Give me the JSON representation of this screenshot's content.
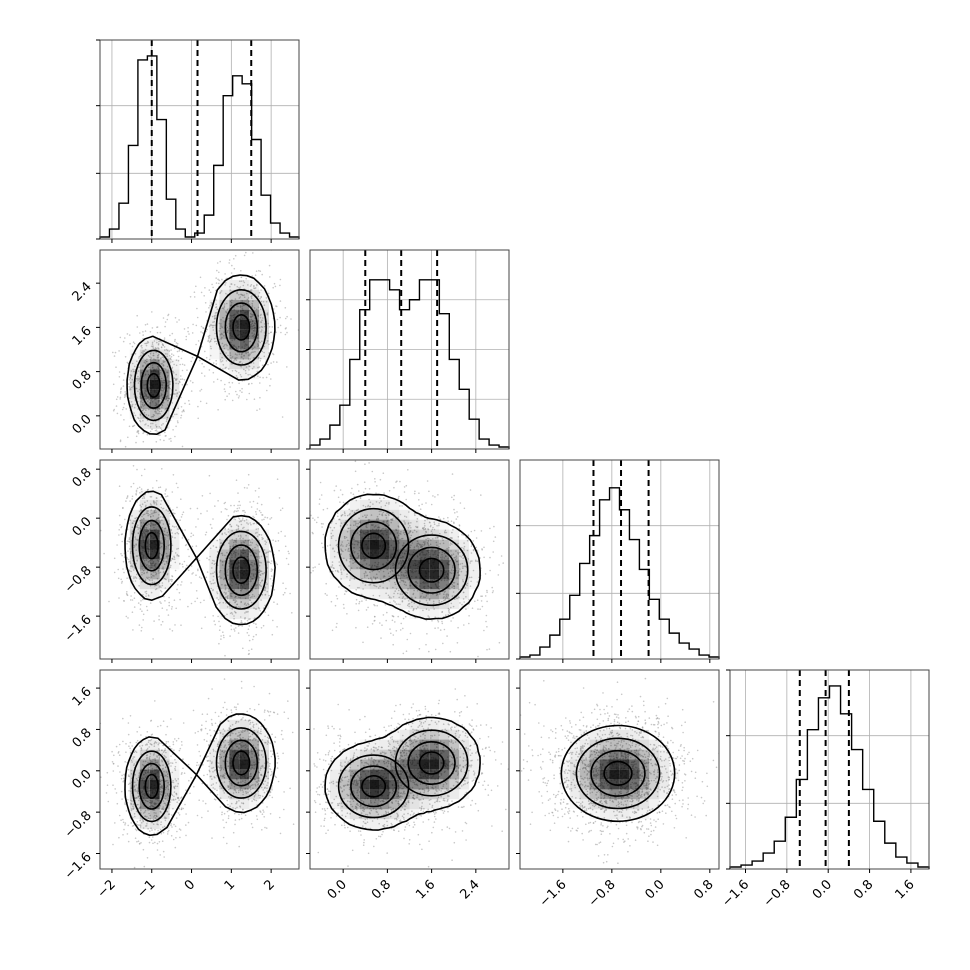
{
  "chart_data": {
    "type": "corner",
    "title": "",
    "num_params": 4,
    "params": [
      {
        "label": "",
        "range": [
          -2.3,
          2.7
        ],
        "ticks": [
          -2,
          -1,
          0,
          1,
          2
        ],
        "tick_labels": [
          "−2",
          "−1",
          "0",
          "1",
          "2"
        ],
        "quantiles": [
          -1.0,
          0.15,
          1.5
        ],
        "histogram": [
          0.01,
          0.05,
          0.18,
          0.47,
          0.9,
          0.92,
          0.6,
          0.2,
          0.05,
          0.01,
          0.03,
          0.12,
          0.37,
          0.72,
          0.82,
          0.78,
          0.5,
          0.22,
          0.08,
          0.03,
          0.01
        ],
        "hist_ticks": [
          0,
          0.33,
          0.67,
          1.0
        ]
      },
      {
        "label": "",
        "range": [
          -0.6,
          3.0
        ],
        "ticks": [
          0.0,
          0.8,
          1.6,
          2.4
        ],
        "tick_labels": [
          "0.0",
          "0.8",
          "1.6",
          "2.4"
        ],
        "quantiles": [
          0.4,
          1.05,
          1.7
        ],
        "histogram": [
          0.02,
          0.05,
          0.12,
          0.22,
          0.45,
          0.7,
          0.85,
          0.85,
          0.8,
          0.7,
          0.75,
          0.85,
          0.85,
          0.68,
          0.45,
          0.3,
          0.15,
          0.05,
          0.02,
          0.01
        ],
        "hist_ticks": [
          0,
          0.25,
          0.5,
          0.75
        ]
      },
      {
        "label": "",
        "range": [
          -2.3,
          0.95
        ],
        "ticks": [
          -1.6,
          -0.8,
          0.0,
          0.8
        ],
        "tick_labels": [
          "−1.6",
          "−0.8",
          "0.0",
          "0.8"
        ],
        "quantiles": [
          -1.1,
          -0.65,
          -0.2
        ],
        "histogram": [
          0.01,
          0.02,
          0.06,
          0.12,
          0.2,
          0.32,
          0.48,
          0.62,
          0.8,
          0.86,
          0.75,
          0.6,
          0.45,
          0.3,
          0.2,
          0.13,
          0.08,
          0.05,
          0.02,
          0.01
        ],
        "hist_ticks": [
          0,
          0.33,
          0.67
        ]
      },
      {
        "label": "",
        "range": [
          -1.9,
          1.95
        ],
        "ticks": [
          -1.6,
          -0.8,
          0.0,
          0.8,
          1.6
        ],
        "tick_labels": [
          "−1.6",
          "−0.8",
          "0.0",
          "0.8",
          "1.6"
        ],
        "quantiles": [
          -0.55,
          -0.05,
          0.4
        ],
        "histogram": [
          0.01,
          0.02,
          0.04,
          0.08,
          0.14,
          0.26,
          0.45,
          0.7,
          0.86,
          0.92,
          0.78,
          0.6,
          0.4,
          0.24,
          0.13,
          0.06,
          0.03,
          0.01
        ],
        "hist_ticks": [
          0,
          0.33,
          0.67,
          1.0
        ]
      }
    ],
    "pairs": [
      {
        "row": 1,
        "col": 0,
        "clusters": [
          {
            "center": [
              -0.95,
              0.55
            ],
            "sd": [
              0.32,
              0.42
            ],
            "rho": 0.0,
            "weight": 0.5
          },
          {
            "center": [
              1.25,
              1.6
            ],
            "sd": [
              0.4,
              0.45
            ],
            "rho": 0.0,
            "weight": 0.5
          }
        ]
      },
      {
        "row": 2,
        "col": 0,
        "clusters": [
          {
            "center": [
              -1.0,
              -0.45
            ],
            "sd": [
              0.32,
              0.42
            ],
            "rho": 0.0,
            "weight": 0.5
          },
          {
            "center": [
              1.25,
              -0.85
            ],
            "sd": [
              0.4,
              0.42
            ],
            "rho": 0.0,
            "weight": 0.5
          }
        ]
      },
      {
        "row": 2,
        "col": 1,
        "clusters": [
          {
            "center": [
              0.55,
              -0.45
            ],
            "sd": [
              0.42,
              0.4
            ],
            "rho": 0.0,
            "weight": 0.5
          },
          {
            "center": [
              1.6,
              -0.85
            ],
            "sd": [
              0.42,
              0.38
            ],
            "rho": 0.0,
            "weight": 0.5
          }
        ]
      },
      {
        "row": 3,
        "col": 0,
        "clusters": [
          {
            "center": [
              -1.0,
              -0.3
            ],
            "sd": [
              0.32,
              0.45
            ],
            "rho": 0.0,
            "weight": 0.5
          },
          {
            "center": [
              1.25,
              0.15
            ],
            "sd": [
              0.4,
              0.45
            ],
            "rho": 0.0,
            "weight": 0.5
          }
        ]
      },
      {
        "row": 3,
        "col": 1,
        "clusters": [
          {
            "center": [
              0.55,
              -0.3
            ],
            "sd": [
              0.42,
              0.4
            ],
            "rho": 0.0,
            "weight": 0.5
          },
          {
            "center": [
              1.6,
              0.15
            ],
            "sd": [
              0.42,
              0.42
            ],
            "rho": 0.0,
            "weight": 0.5
          }
        ]
      },
      {
        "row": 3,
        "col": 2,
        "clusters": [
          {
            "center": [
              -0.7,
              -0.05
            ],
            "sd": [
              0.45,
              0.45
            ],
            "rho": 0.0,
            "weight": 1.0
          }
        ]
      }
    ],
    "contour_levels": [
      0.12,
      0.32,
      0.62,
      0.88
    ],
    "grid": true,
    "colors": {
      "frame": "#444444",
      "grid": "#b0b0b0",
      "contour": "#000000",
      "scatter": "#9a9a9a",
      "density": "#000000",
      "quantile_line": "#000000"
    }
  }
}
